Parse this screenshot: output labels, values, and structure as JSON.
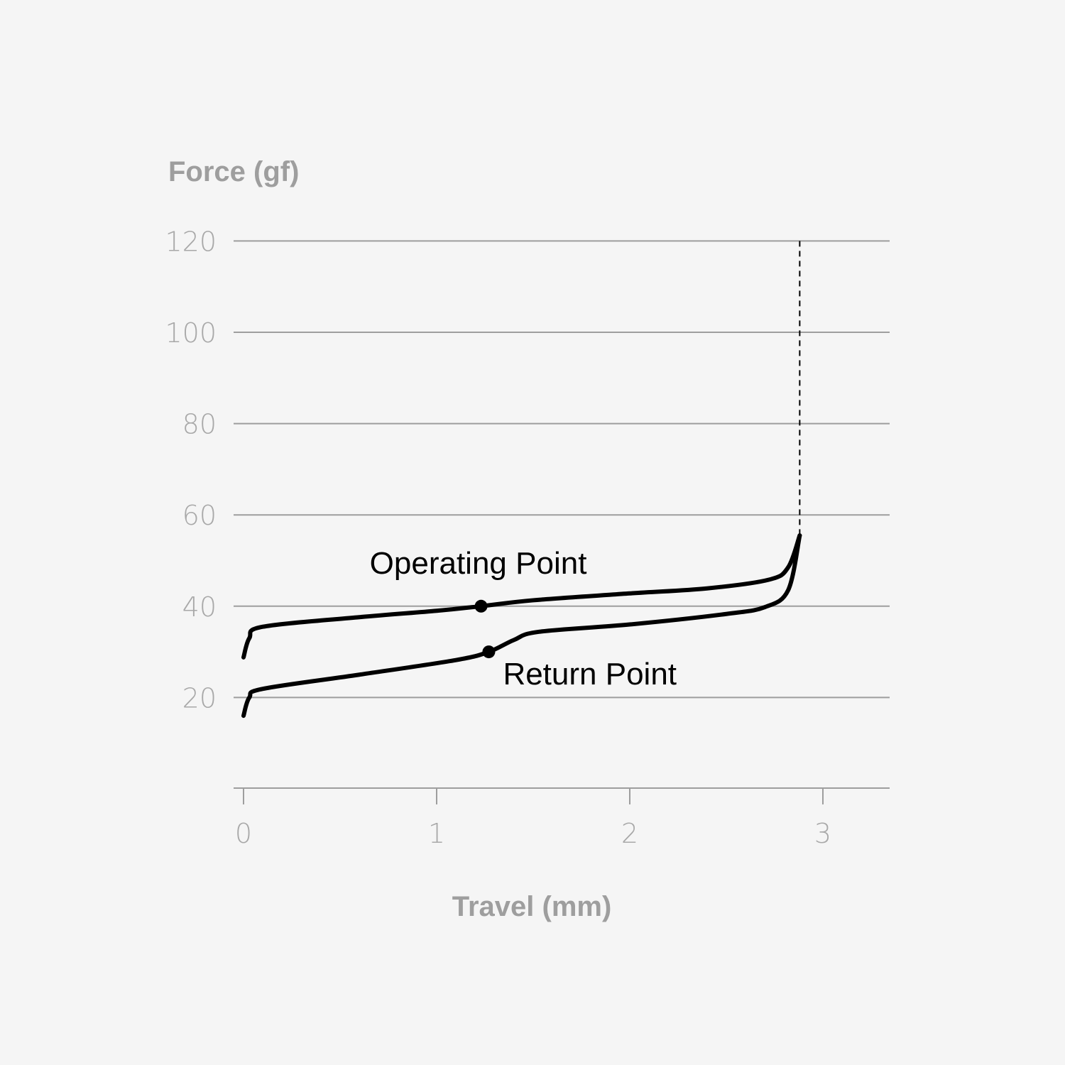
{
  "chart_data": {
    "type": "line",
    "xlabel": "Travel (mm)",
    "ylabel": "Force (gf)",
    "xlim": [
      0,
      3.3
    ],
    "ylim": [
      0,
      120
    ],
    "xticks": [
      "0",
      "1",
      "2",
      "3"
    ],
    "yticks": [
      "20",
      "40",
      "60",
      "80",
      "100",
      "120"
    ],
    "grid": "horizontal",
    "series": [
      {
        "id": "press",
        "color": "#000000",
        "x": [
          0,
          0.03,
          0.1,
          0.6,
          1.0,
          1.23,
          1.5,
          2.0,
          2.4,
          2.72,
          2.82,
          2.88
        ],
        "y": [
          28.8,
          33,
          35.5,
          37.6,
          39,
          40,
          41.3,
          42.8,
          43.9,
          45.8,
          48.5,
          55.5
        ]
      },
      {
        "id": "release",
        "color": "#000000",
        "x": [
          0,
          0.03,
          0.1,
          0.6,
          1.1,
          1.27,
          1.4,
          1.53,
          2.0,
          2.5,
          2.7,
          2.82,
          2.88
        ],
        "y": [
          16,
          20,
          21.9,
          25,
          28.2,
          30,
          32.6,
          34.4,
          36,
          38.3,
          39.8,
          43.5,
          55.5
        ]
      }
    ],
    "markers": [
      {
        "label": "Operating Point",
        "x": 1.23,
        "y": 40
      },
      {
        "label": "Return Point",
        "x": 1.27,
        "y": 30
      }
    ],
    "bottom_out_line": {
      "x": 2.88,
      "style": "dashed"
    }
  }
}
